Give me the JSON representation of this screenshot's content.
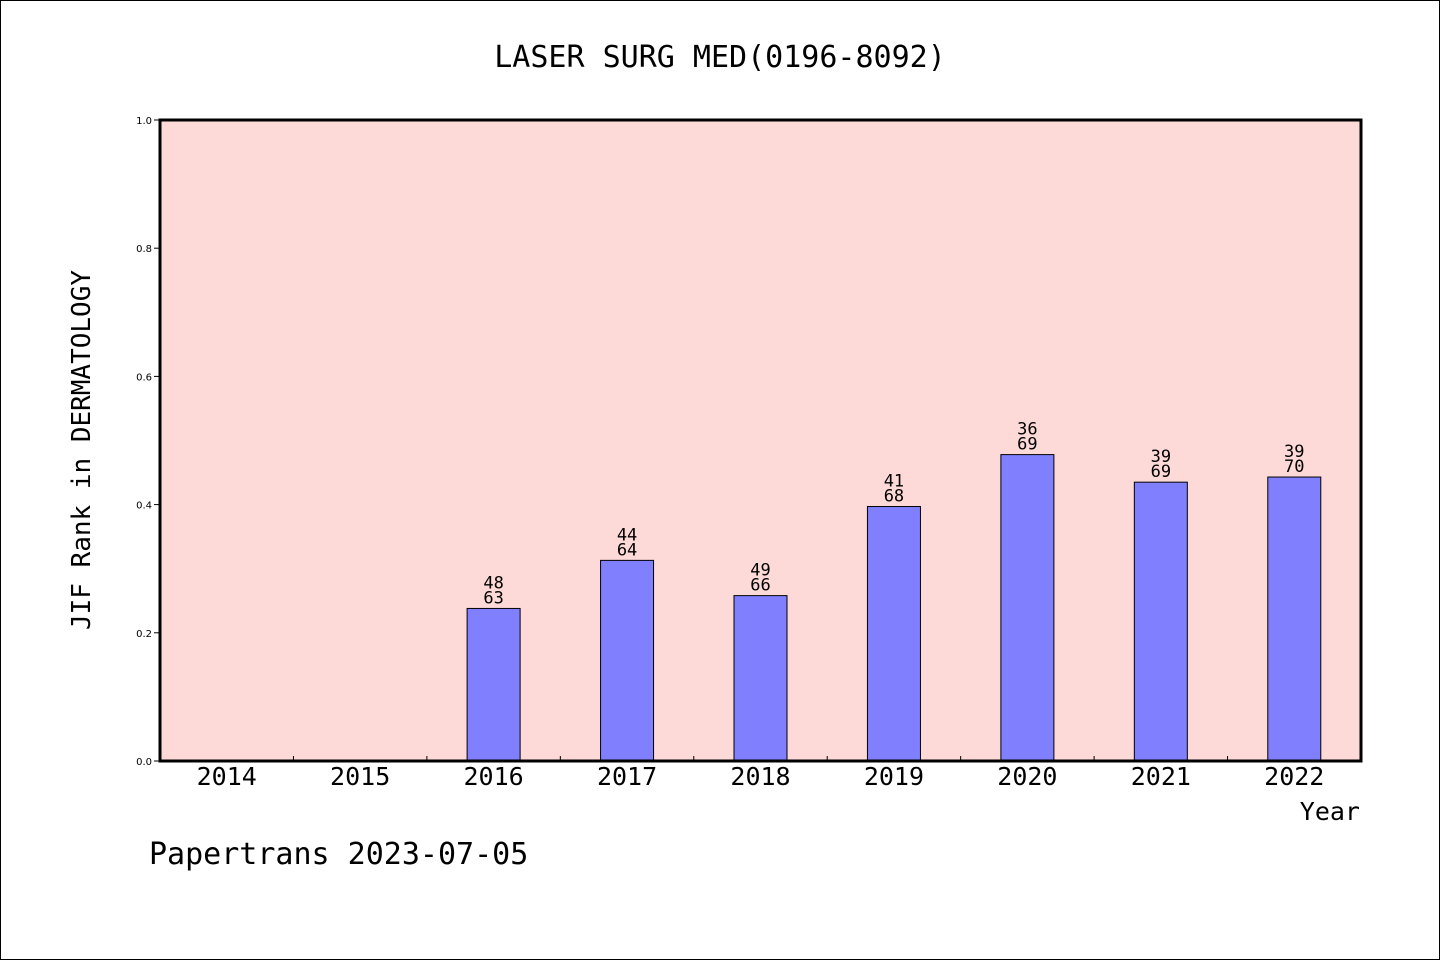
{
  "chart_data": {
    "type": "bar",
    "title": "LASER SURG MED(0196-8092)",
    "xlabel": "Year",
    "ylabel": "JIF Rank in DERMATOLOGY",
    "ylim": [
      0,
      1.0
    ],
    "yticks": [
      "0.0",
      "0.2",
      "0.4",
      "0.6",
      "0.8",
      "1.0"
    ],
    "categories": [
      "2014",
      "2015",
      "2016",
      "2017",
      "2018",
      "2019",
      "2020",
      "2021",
      "2022"
    ],
    "values": [
      null,
      null,
      0.238,
      0.313,
      0.258,
      0.397,
      0.478,
      0.435,
      0.443
    ],
    "rank": [
      null,
      null,
      "48",
      "44",
      "49",
      "41",
      "36",
      "39",
      "39"
    ],
    "total": [
      null,
      null,
      "63",
      "64",
      "66",
      "68",
      "69",
      "69",
      "70"
    ],
    "grid": false,
    "colors": {
      "plot_background": "#fddad7",
      "bar_fill": "#8080ff",
      "bar_stroke": "#000000"
    }
  },
  "footer": "Papertrans 2023-07-05"
}
